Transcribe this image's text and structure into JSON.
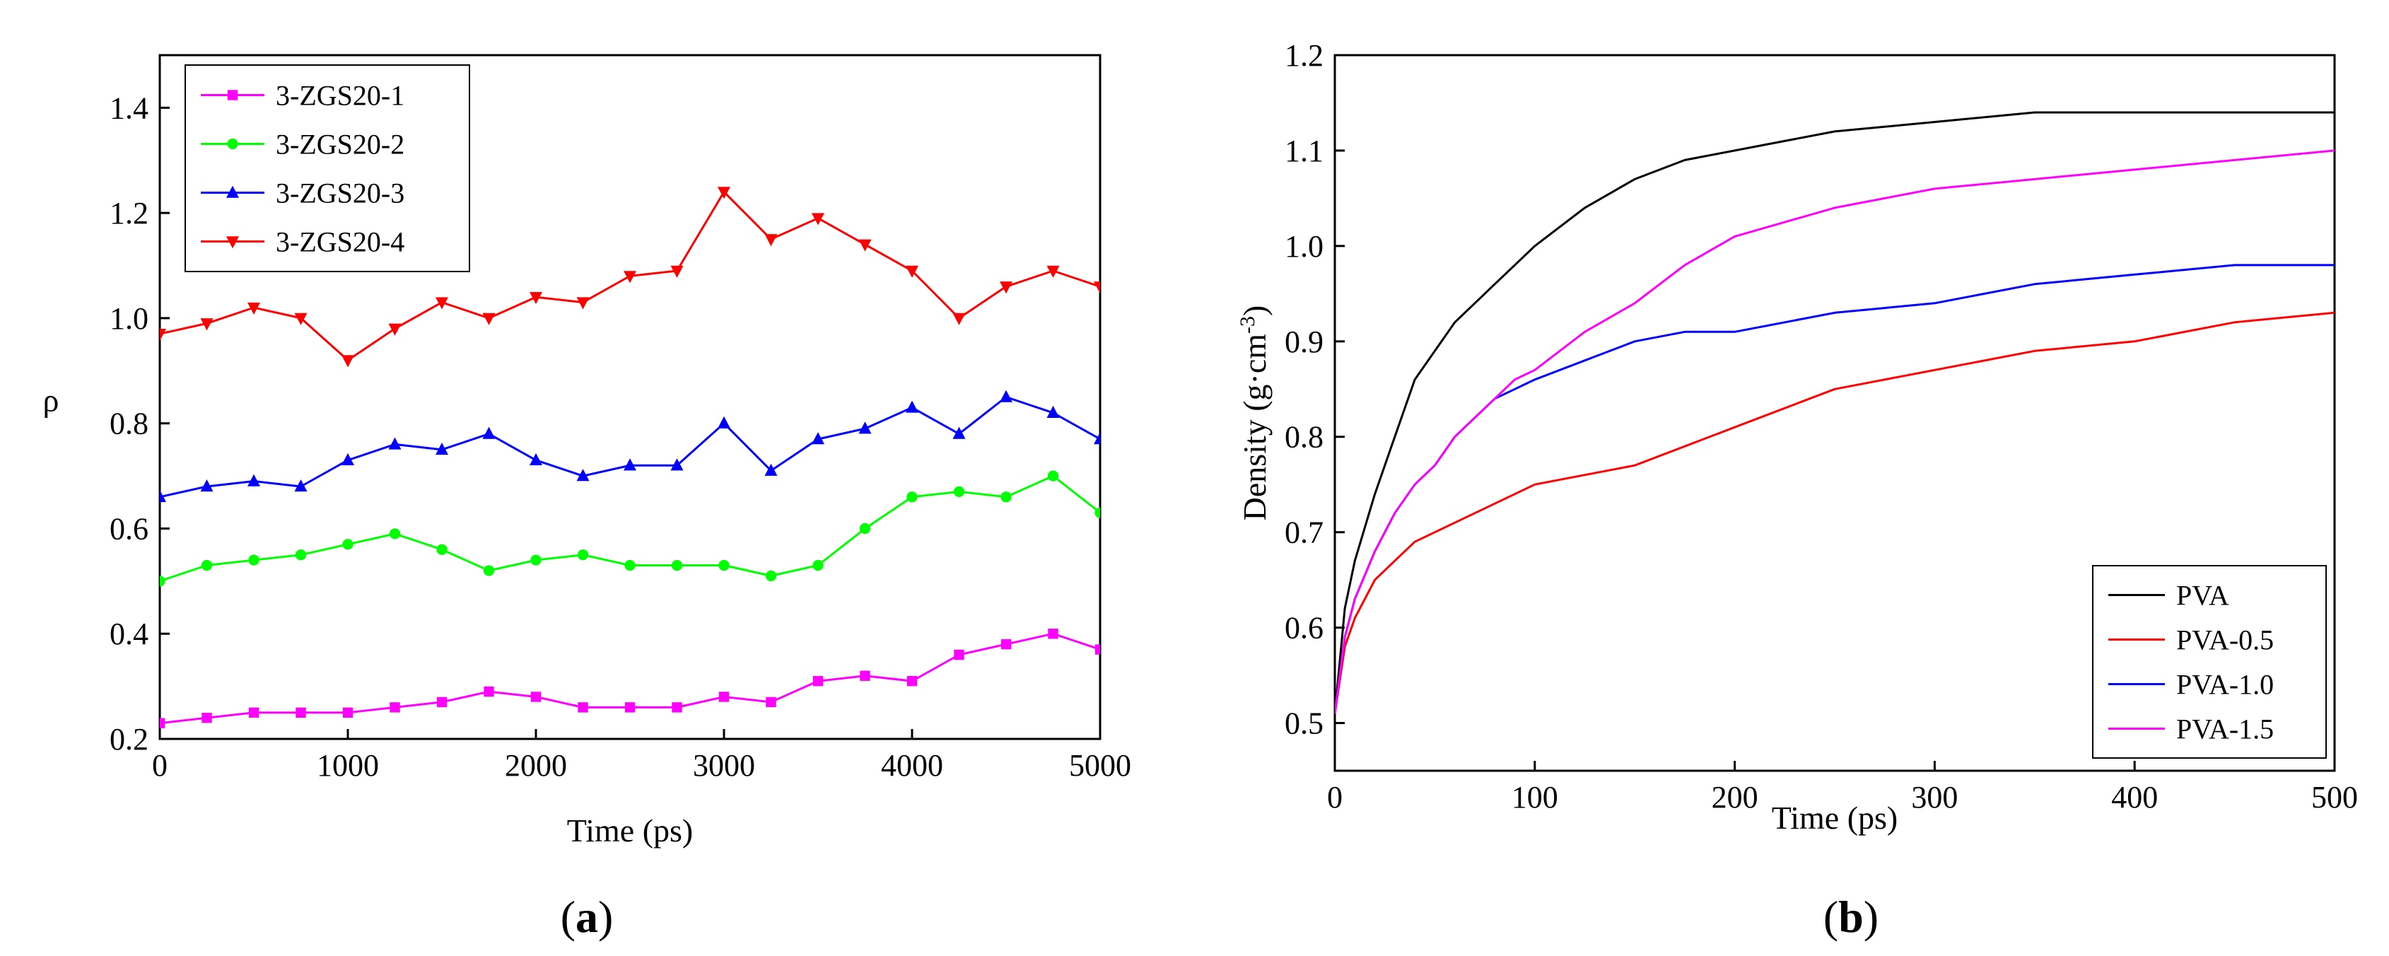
{
  "panels": [
    {
      "caption_open": "(",
      "caption_letter": "a",
      "caption_close": ")"
    },
    {
      "caption_open": "(",
      "caption_letter": "b",
      "caption_close": ")"
    }
  ],
  "chart_data": [
    {
      "type": "line",
      "title": "",
      "xlabel": "Time (ps)",
      "ylabel": "ρ",
      "xlim": [
        0,
        5000
      ],
      "ylim": [
        0.2,
        1.5
      ],
      "xticks": [
        0,
        1000,
        2000,
        3000,
        4000,
        5000
      ],
      "yticks": [
        0.2,
        0.4,
        0.6,
        0.8,
        1.0,
        1.2,
        1.4
      ],
      "ytick_labels": [
        "0.2",
        "0.4",
        "0.6",
        "0.8",
        "1.0",
        "1.2",
        "1.4"
      ],
      "legend_position": "top-left",
      "x": [
        0,
        250,
        500,
        750,
        1000,
        1250,
        1500,
        1750,
        2000,
        2250,
        2500,
        2750,
        3000,
        3250,
        3500,
        3750,
        4000,
        4250,
        4500,
        4750,
        5000
      ],
      "series": [
        {
          "name": "3-ZGS20-1",
          "color": "#ff00ff",
          "marker": "square",
          "values": [
            0.23,
            0.24,
            0.25,
            0.25,
            0.25,
            0.26,
            0.27,
            0.29,
            0.28,
            0.26,
            0.26,
            0.26,
            0.28,
            0.27,
            0.31,
            0.32,
            0.31,
            0.36,
            0.38,
            0.4,
            0.37
          ]
        },
        {
          "name": "3-ZGS20-2",
          "color": "#00ff00",
          "marker": "circle",
          "values": [
            0.5,
            0.53,
            0.54,
            0.55,
            0.57,
            0.59,
            0.56,
            0.52,
            0.54,
            0.55,
            0.53,
            0.53,
            0.53,
            0.51,
            0.53,
            0.6,
            0.66,
            0.67,
            0.66,
            0.7,
            0.63
          ]
        },
        {
          "name": "3-ZGS20-3",
          "color": "#0000ff",
          "marker": "triangle-up",
          "values": [
            0.66,
            0.68,
            0.69,
            0.68,
            0.73,
            0.76,
            0.75,
            0.78,
            0.73,
            0.7,
            0.72,
            0.72,
            0.8,
            0.71,
            0.77,
            0.79,
            0.83,
            0.78,
            0.85,
            0.82,
            0.77
          ]
        },
        {
          "name": "3-ZGS20-4",
          "color": "#ff0000",
          "marker": "triangle-down",
          "values": [
            0.97,
            0.99,
            1.02,
            1.0,
            0.92,
            0.98,
            1.03,
            1.0,
            1.04,
            1.03,
            1.08,
            1.09,
            1.24,
            1.15,
            1.19,
            1.14,
            1.09,
            1.0,
            1.06,
            1.09,
            1.06
          ]
        }
      ]
    },
    {
      "type": "line",
      "title": "",
      "xlabel": "Time (ps)",
      "ylabel": "Density (g·cm",
      "ylabel_sup": "-3",
      "ylabel_close": ")",
      "xlim": [
        0,
        500
      ],
      "ylim": [
        0.45,
        1.2
      ],
      "xticks": [
        0,
        100,
        200,
        300,
        400,
        500
      ],
      "yticks": [
        0.5,
        0.6,
        0.7,
        0.8,
        0.9,
        1.0,
        1.1,
        1.2
      ],
      "ytick_labels": [
        "0.5",
        "0.6",
        "0.7",
        "0.8",
        "0.9",
        "1.0",
        "1.1",
        "1.2"
      ],
      "legend_position": "bottom-right",
      "x": [
        0,
        5,
        10,
        20,
        30,
        40,
        50,
        60,
        70,
        80,
        90,
        100,
        125,
        150,
        175,
        200,
        250,
        300,
        350,
        400,
        450,
        500
      ],
      "series": [
        {
          "name": "PVA",
          "color": "#000000",
          "values": [
            0.51,
            0.62,
            0.67,
            0.74,
            0.8,
            0.86,
            0.89,
            0.92,
            0.94,
            0.96,
            0.98,
            1.0,
            1.04,
            1.07,
            1.09,
            1.1,
            1.12,
            1.13,
            1.14,
            1.14,
            1.14,
            1.14
          ]
        },
        {
          "name": "PVA-0.5",
          "color": "#ff0000",
          "values": [
            0.51,
            0.58,
            0.61,
            0.65,
            0.67,
            0.69,
            0.7,
            0.71,
            0.72,
            0.73,
            0.74,
            0.75,
            0.76,
            0.77,
            0.79,
            0.81,
            0.85,
            0.87,
            0.89,
            0.9,
            0.92,
            0.93
          ]
        },
        {
          "name": "PVA-1.0",
          "color": "#0000ff",
          "values": [
            0.51,
            0.59,
            0.63,
            0.68,
            0.72,
            0.75,
            0.77,
            0.8,
            0.82,
            0.84,
            0.85,
            0.86,
            0.88,
            0.9,
            0.91,
            0.91,
            0.93,
            0.94,
            0.96,
            0.97,
            0.98,
            0.98
          ]
        },
        {
          "name": "PVA-1.5",
          "color": "#ff00ff",
          "values": [
            0.51,
            0.59,
            0.63,
            0.68,
            0.72,
            0.75,
            0.77,
            0.8,
            0.82,
            0.84,
            0.86,
            0.87,
            0.91,
            0.94,
            0.98,
            1.01,
            1.04,
            1.06,
            1.07,
            1.08,
            1.09,
            1.1
          ]
        }
      ]
    }
  ]
}
